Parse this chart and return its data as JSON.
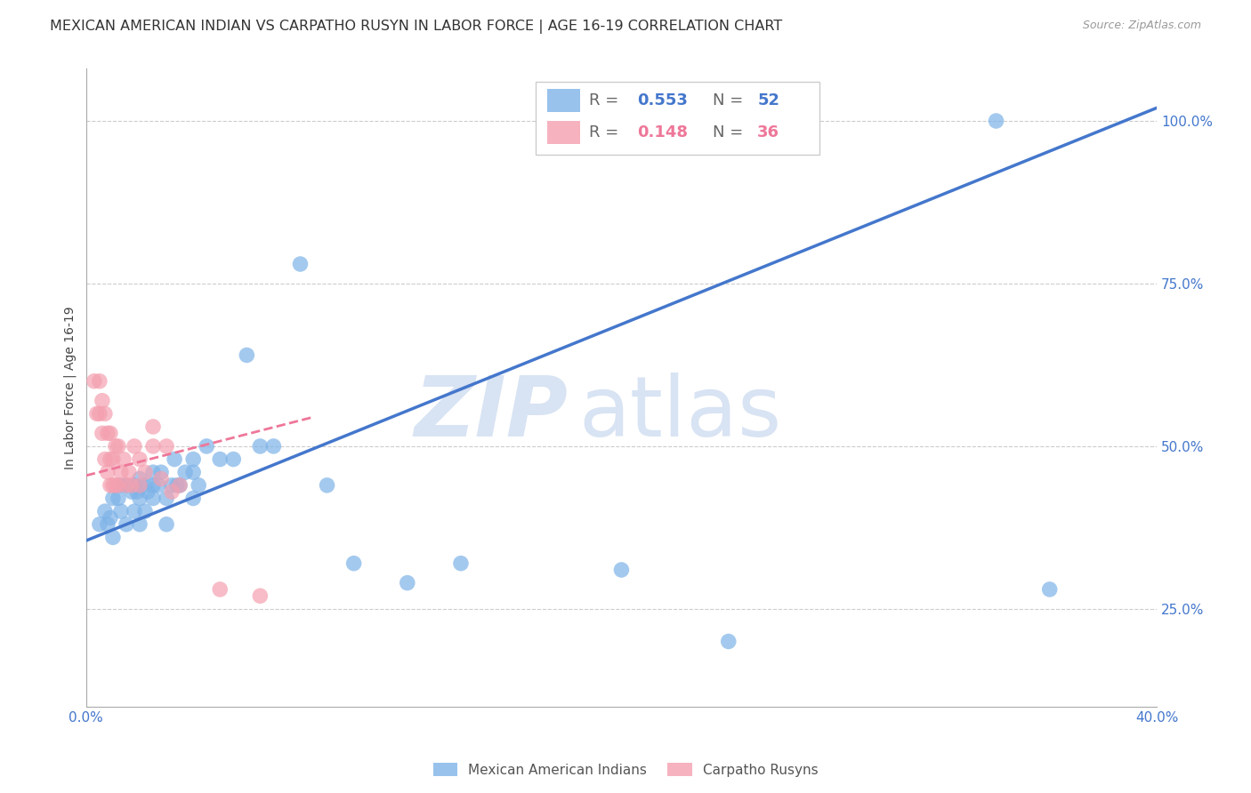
{
  "title": "MEXICAN AMERICAN INDIAN VS CARPATHO RUSYN IN LABOR FORCE | AGE 16-19 CORRELATION CHART",
  "source": "Source: ZipAtlas.com",
  "ylabel": "In Labor Force | Age 16-19",
  "xlim": [
    0.0,
    0.4
  ],
  "ylim": [
    0.1,
    1.08
  ],
  "xticks": [
    0.0,
    0.1,
    0.2,
    0.3,
    0.4
  ],
  "xticklabels": [
    "0.0%",
    "",
    "",
    "",
    "40.0%"
  ],
  "yticks": [
    0.25,
    0.5,
    0.75,
    1.0
  ],
  "yticklabels": [
    "25.0%",
    "50.0%",
    "75.0%",
    "100.0%"
  ],
  "blue_R": "0.553",
  "blue_N": "52",
  "pink_R": "0.148",
  "pink_N": "36",
  "blue_color": "#7EB3E8",
  "pink_color": "#F4A0B0",
  "blue_line_color": "#4477CC",
  "pink_line_color": "#EE7799",
  "watermark_zip": "ZIP",
  "watermark_atlas": "atlas",
  "legend_label_blue": "Mexican American Indians",
  "legend_label_pink": "Carpatho Rusyns",
  "blue_scatter_x": [
    0.005,
    0.007,
    0.008,
    0.009,
    0.01,
    0.01,
    0.012,
    0.013,
    0.013,
    0.015,
    0.015,
    0.017,
    0.018,
    0.018,
    0.019,
    0.02,
    0.02,
    0.02,
    0.022,
    0.022,
    0.023,
    0.025,
    0.025,
    0.025,
    0.027,
    0.028,
    0.03,
    0.03,
    0.032,
    0.033,
    0.034,
    0.035,
    0.037,
    0.04,
    0.04,
    0.04,
    0.042,
    0.045,
    0.05,
    0.055,
    0.06,
    0.065,
    0.07,
    0.08,
    0.09,
    0.1,
    0.12,
    0.14,
    0.2,
    0.24,
    0.34,
    0.36
  ],
  "blue_scatter_y": [
    0.38,
    0.4,
    0.38,
    0.39,
    0.36,
    0.42,
    0.42,
    0.4,
    0.44,
    0.38,
    0.44,
    0.43,
    0.4,
    0.44,
    0.43,
    0.38,
    0.42,
    0.45,
    0.4,
    0.44,
    0.43,
    0.42,
    0.44,
    0.46,
    0.44,
    0.46,
    0.38,
    0.42,
    0.44,
    0.48,
    0.44,
    0.44,
    0.46,
    0.42,
    0.46,
    0.48,
    0.44,
    0.5,
    0.48,
    0.48,
    0.64,
    0.5,
    0.5,
    0.78,
    0.44,
    0.32,
    0.29,
    0.32,
    0.31,
    0.2,
    1.0,
    0.28
  ],
  "pink_scatter_x": [
    0.003,
    0.004,
    0.005,
    0.005,
    0.006,
    0.006,
    0.007,
    0.007,
    0.008,
    0.008,
    0.009,
    0.009,
    0.009,
    0.01,
    0.01,
    0.011,
    0.011,
    0.012,
    0.012,
    0.013,
    0.014,
    0.015,
    0.016,
    0.017,
    0.018,
    0.02,
    0.02,
    0.022,
    0.025,
    0.025,
    0.028,
    0.03,
    0.032,
    0.035,
    0.05,
    0.065
  ],
  "pink_scatter_y": [
    0.6,
    0.55,
    0.55,
    0.6,
    0.52,
    0.57,
    0.48,
    0.55,
    0.46,
    0.52,
    0.44,
    0.48,
    0.52,
    0.44,
    0.48,
    0.44,
    0.5,
    0.44,
    0.5,
    0.46,
    0.48,
    0.44,
    0.46,
    0.44,
    0.5,
    0.44,
    0.48,
    0.46,
    0.5,
    0.53,
    0.45,
    0.5,
    0.43,
    0.44,
    0.28,
    0.27
  ],
  "blue_line_x": [
    0.0,
    0.4
  ],
  "blue_line_y": [
    0.355,
    1.02
  ],
  "pink_line_x": [
    0.0,
    0.085
  ],
  "pink_line_y": [
    0.455,
    0.545
  ],
  "grid_color": "#CCCCCC",
  "background_color": "#FFFFFF",
  "title_fontsize": 11.5,
  "axis_label_fontsize": 10,
  "tick_fontsize": 11,
  "legend_fontsize": 12
}
